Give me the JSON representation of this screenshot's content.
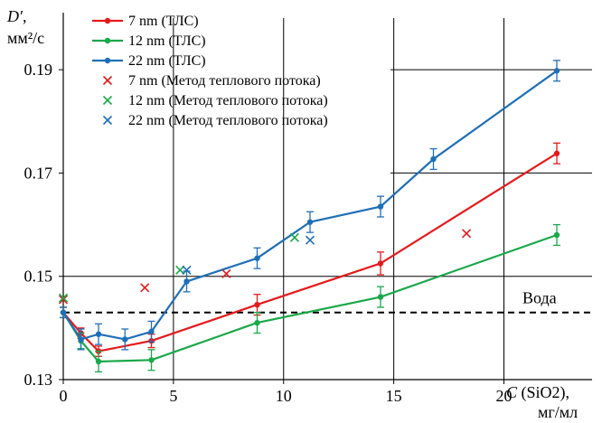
{
  "chart_data": {
    "type": "line",
    "title": "",
    "xlabel": "C (SiO2), мг/мл",
    "ylabel": "D′, мм²/с",
    "xlim": [
      0,
      24
    ],
    "ylim": [
      0.13,
      0.2
    ],
    "x_ticks": [
      "0",
      "5",
      "10",
      "15",
      "20"
    ],
    "y_ticks": [
      "0.13",
      "0.15",
      "0.17",
      "0.19"
    ],
    "series": [
      {
        "name": "7 nm (ТЛС)",
        "color": "#e41a1c",
        "marker": "dot",
        "points": [
          [
            0,
            0.143
          ],
          [
            0.8,
            0.139
          ],
          [
            1.6,
            0.1355
          ],
          [
            4.0,
            0.1375
          ],
          [
            8.8,
            0.1445
          ],
          [
            14.4,
            0.1525
          ],
          [
            22.4,
            0.1738
          ]
        ],
        "errors": [
          0.001,
          0.001,
          0.001,
          0.0013,
          0.002,
          0.0022,
          0.002
        ]
      },
      {
        "name": "12 nm (ТЛС)",
        "color": "#1aa84a",
        "marker": "dot",
        "points": [
          [
            0,
            0.143
          ],
          [
            0.8,
            0.1375
          ],
          [
            1.6,
            0.1335
          ],
          [
            4.0,
            0.1338
          ],
          [
            8.8,
            0.141
          ],
          [
            14.4,
            0.146
          ],
          [
            22.4,
            0.158
          ]
        ],
        "errors": [
          0.001,
          0.0015,
          0.002,
          0.002,
          0.002,
          0.002,
          0.002
        ]
      },
      {
        "name": "22 nm (ТЛС)",
        "color": "#1f6fb8",
        "marker": "dot",
        "points": [
          [
            0,
            0.143
          ],
          [
            0.8,
            0.1378
          ],
          [
            1.6,
            0.1388
          ],
          [
            2.8,
            0.1378
          ],
          [
            4.0,
            0.1393
          ],
          [
            5.6,
            0.149
          ],
          [
            8.8,
            0.1535
          ],
          [
            11.2,
            0.1605
          ],
          [
            14.4,
            0.1635
          ],
          [
            16.8,
            0.1727
          ],
          [
            22.4,
            0.1898
          ]
        ],
        "errors": [
          0.001,
          0.002,
          0.002,
          0.002,
          0.002,
          0.002,
          0.002,
          0.002,
          0.002,
          0.002,
          0.002
        ]
      },
      {
        "name": "7 nm (Метод теплового потока)",
        "color": "#e41a1c",
        "marker": "x",
        "points": [
          [
            0,
            0.1455
          ],
          [
            3.7,
            0.1478
          ],
          [
            7.4,
            0.1505
          ],
          [
            18.3,
            0.1583
          ]
        ]
      },
      {
        "name": "12 nm (Метод теплового потока)",
        "color": "#1aa84a",
        "marker": "x",
        "points": [
          [
            0,
            0.1458
          ],
          [
            5.3,
            0.1512
          ],
          [
            10.5,
            0.1575
          ]
        ]
      },
      {
        "name": "22 nm (Метод теплового потока)",
        "color": "#1f6fb8",
        "marker": "x",
        "points": [
          [
            5.6,
            0.1512
          ],
          [
            11.2,
            0.157
          ]
        ]
      }
    ],
    "reference_line": {
      "label": "Вода",
      "y": 0.143,
      "style": "dashed"
    },
    "grid": "partial",
    "legend": "top-left"
  }
}
